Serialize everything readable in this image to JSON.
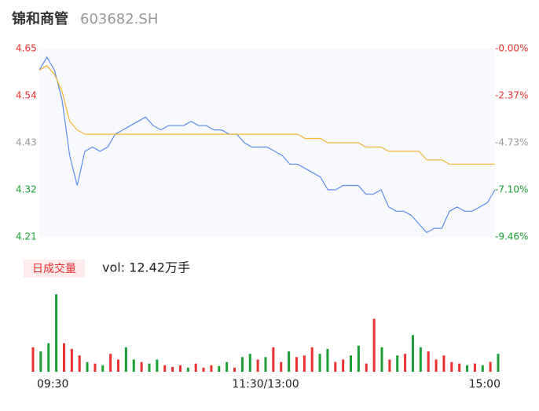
{
  "chart_data": [
    {
      "type": "line",
      "title": "锦和商管",
      "subtitle": "603682.SH",
      "x": [
        0,
        4,
        8,
        12,
        16,
        20,
        24,
        28,
        32,
        36,
        40,
        44,
        48,
        52,
        56,
        60,
        64,
        68,
        72,
        76,
        80,
        84,
        88,
        92,
        96,
        100,
        104,
        108,
        112,
        116,
        120,
        124,
        128,
        132,
        136,
        140,
        144,
        148,
        152,
        156,
        160,
        164,
        168,
        172,
        176,
        180,
        184,
        188,
        192,
        196,
        200,
        204,
        208,
        212,
        216,
        220,
        224,
        228,
        232,
        236,
        240
      ],
      "xlim": [
        0,
        240
      ],
      "ylim": [
        4.21,
        4.65
      ],
      "yticks": [
        4.65,
        4.54,
        4.43,
        4.32,
        4.21
      ],
      "ytick_colors": [
        "#e93030",
        "#e93030",
        "#999999",
        "#1aa034",
        "#1aa034"
      ],
      "y2lim": [
        -9.46,
        0
      ],
      "y2ticks": [
        {
          "value": 0,
          "label": "-0.00%"
        },
        {
          "value": -2.37,
          "label": "-2.37%"
        },
        {
          "value": -4.73,
          "label": "-4.73%"
        },
        {
          "value": -7.1,
          "label": "-7.10%"
        },
        {
          "value": -9.46,
          "label": "-9.46%"
        }
      ],
      "series": [
        {
          "color": "#5b8def",
          "values": [
            4.6,
            4.63,
            4.6,
            4.53,
            4.4,
            4.33,
            4.41,
            4.42,
            4.41,
            4.42,
            4.45,
            4.46,
            4.47,
            4.48,
            4.49,
            4.47,
            4.46,
            4.47,
            4.47,
            4.47,
            4.48,
            4.47,
            4.47,
            4.46,
            4.46,
            4.45,
            4.45,
            4.43,
            4.42,
            4.42,
            4.42,
            4.41,
            4.4,
            4.38,
            4.38,
            4.37,
            4.36,
            4.35,
            4.32,
            4.32,
            4.33,
            4.33,
            4.33,
            4.31,
            4.31,
            4.32,
            4.28,
            4.27,
            4.27,
            4.26,
            4.24,
            4.22,
            4.23,
            4.23,
            4.27,
            4.28,
            4.27,
            4.27,
            4.28,
            4.29,
            4.32
          ]
        },
        {
          "color": "#f5b335",
          "values": [
            4.6,
            4.61,
            4.59,
            4.55,
            4.48,
            4.46,
            4.45,
            4.45,
            4.45,
            4.45,
            4.45,
            4.45,
            4.45,
            4.45,
            4.45,
            4.45,
            4.45,
            4.45,
            4.45,
            4.45,
            4.45,
            4.45,
            4.45,
            4.45,
            4.45,
            4.45,
            4.45,
            4.45,
            4.45,
            4.45,
            4.45,
            4.45,
            4.45,
            4.45,
            4.45,
            4.44,
            4.44,
            4.44,
            4.43,
            4.43,
            4.43,
            4.43,
            4.43,
            4.42,
            4.42,
            4.42,
            4.41,
            4.41,
            4.41,
            4.41,
            4.41,
            4.39,
            4.39,
            4.39,
            4.38,
            4.38,
            4.38,
            4.38,
            4.38,
            4.38,
            4.38
          ]
        }
      ]
    },
    {
      "type": "bar",
      "label": "日成交量",
      "annotation": "vol: 12.42万手",
      "x": [
        0,
        4,
        8,
        12,
        16,
        20,
        24,
        28,
        32,
        36,
        40,
        44,
        48,
        52,
        56,
        60,
        64,
        68,
        72,
        76,
        80,
        84,
        88,
        92,
        96,
        100,
        104,
        108,
        112,
        116,
        120,
        124,
        128,
        132,
        136,
        140,
        144,
        148,
        152,
        156,
        160,
        164,
        168,
        172,
        176,
        180,
        184,
        188,
        192,
        196,
        200,
        204,
        208,
        212,
        216,
        220,
        224,
        228,
        232,
        236,
        240
      ],
      "xlim": [
        0,
        240
      ],
      "xticks": [
        {
          "value": 0,
          "label": "09:30"
        },
        {
          "value": 120,
          "label": "11:30/13:00"
        },
        {
          "value": 240,
          "label": "15:00"
        }
      ],
      "ylim": [
        0,
        100
      ],
      "values": [
        30,
        25,
        35,
        95,
        35,
        28,
        20,
        12,
        10,
        8,
        22,
        15,
        30,
        15,
        12,
        10,
        15,
        8,
        6,
        8,
        5,
        10,
        5,
        8,
        7,
        12,
        5,
        18,
        22,
        15,
        18,
        30,
        12,
        25,
        18,
        20,
        30,
        22,
        28,
        12,
        15,
        20,
        32,
        10,
        65,
        30,
        15,
        20,
        22,
        45,
        30,
        25,
        15,
        20,
        12,
        10,
        8,
        10,
        8,
        12,
        22
      ],
      "bar_colors": [
        "#e93030",
        "#1aa034",
        "#1aa034",
        "#1aa034",
        "#e93030",
        "#e93030",
        "#e93030",
        "#1aa034",
        "#e93030",
        "#1aa034",
        "#e93030",
        "#e93030",
        "#1aa034",
        "#1aa034",
        "#e93030",
        "#1aa034",
        "#1aa034",
        "#e93030",
        "#e93030",
        "#e93030",
        "#1aa034",
        "#e93030",
        "#e93030",
        "#e93030",
        "#1aa034",
        "#1aa034",
        "#e93030",
        "#1aa034",
        "#1aa034",
        "#e93030",
        "#1aa034",
        "#e93030",
        "#e93030",
        "#1aa034",
        "#e93030",
        "#e93030",
        "#e93030",
        "#1aa034",
        "#1aa034",
        "#e93030",
        "#e93030",
        "#1aa034",
        "#1aa034",
        "#e93030",
        "#e93030",
        "#1aa034",
        "#e93030",
        "#1aa034",
        "#e93030",
        "#1aa034",
        "#1aa034",
        "#e93030",
        "#e93030",
        "#e93030",
        "#e93030",
        "#e93030",
        "#1aa034",
        "#e93030",
        "#1aa034",
        "#e93030",
        "#1aa034"
      ]
    }
  ]
}
